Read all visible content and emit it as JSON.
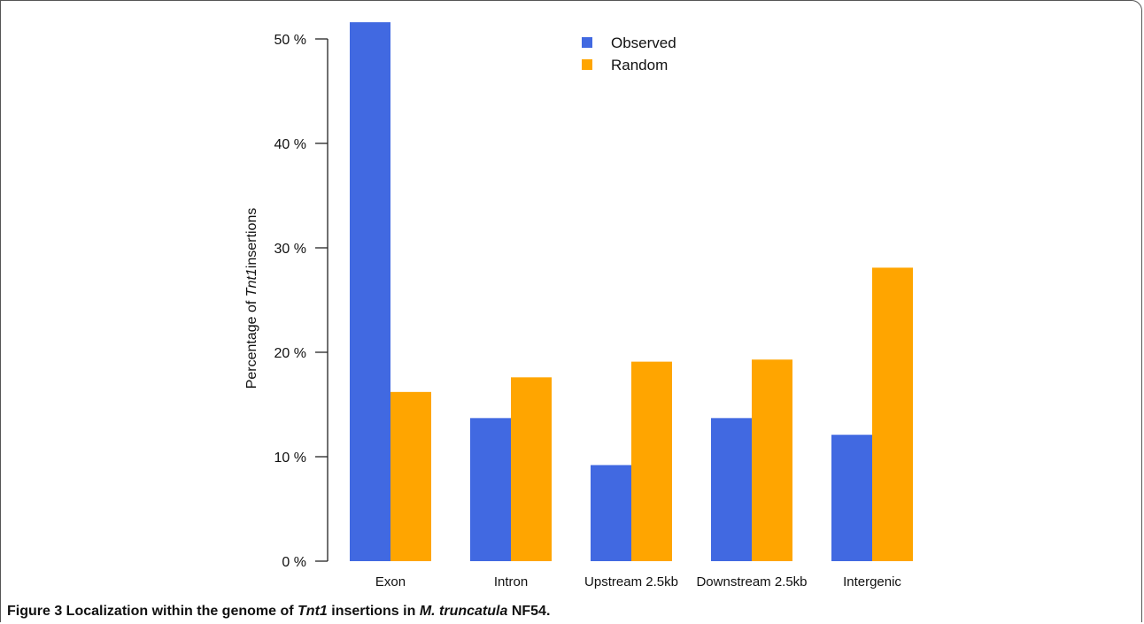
{
  "chart_data": {
    "type": "bar",
    "categories": [
      "Exon",
      "Intron",
      "Upstream 2.5kb",
      "Downstream 2.5kb",
      "Intergenic"
    ],
    "series": [
      {
        "name": "Observed",
        "values": [
          51.6,
          13.7,
          9.2,
          13.7,
          12.1
        ],
        "color": "#4169E1"
      },
      {
        "name": "Random",
        "values": [
          16.2,
          17.6,
          19.1,
          19.3,
          28.1
        ],
        "color": "#FFA500"
      }
    ],
    "ylabel_prefix": "Percentage of ",
    "ylabel_italic": "Tnt1",
    "ylabel_suffix": "insertions",
    "yticks": [
      0,
      10,
      20,
      30,
      40,
      50
    ],
    "ytick_labels": [
      "0 %",
      "10 %",
      "20 %",
      "30 %",
      "40 %",
      "50 %"
    ],
    "ylim": [
      0,
      52
    ],
    "legend_position": "top-center",
    "grid": false
  },
  "caption": {
    "p1": "Figure 3 Localization within the genome of ",
    "p2": "Tnt1",
    "p3": " insertions in ",
    "p4": "M. truncatula",
    "p5": " NF54."
  }
}
